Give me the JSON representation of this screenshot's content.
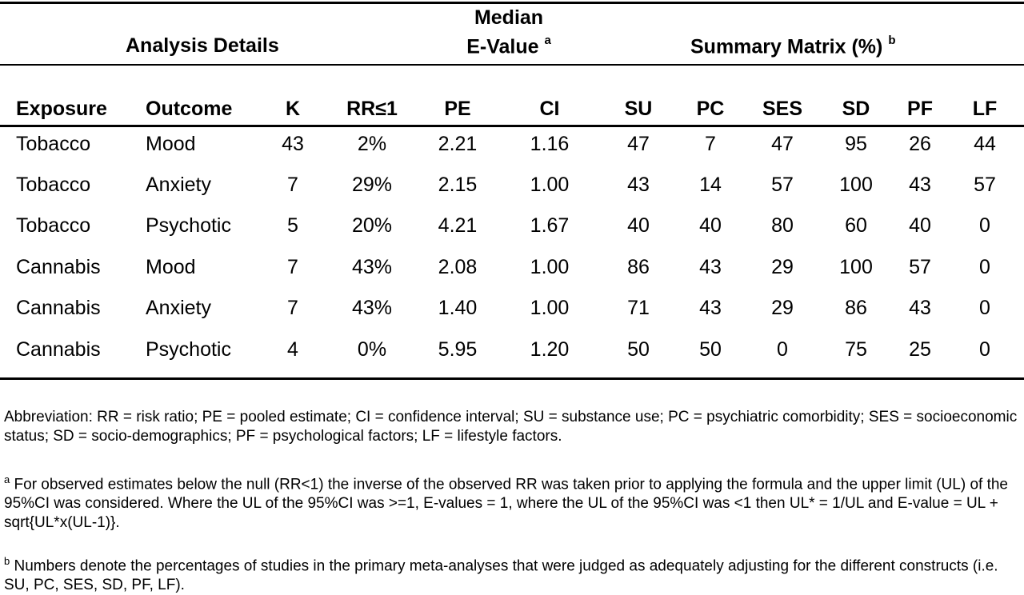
{
  "groups": {
    "analysis": "Analysis Details",
    "median_line1": "Median",
    "median_line2": "E-Value",
    "median_sup": "a",
    "summary": "Summary Matrix (%)",
    "summary_sup": "b"
  },
  "columns": [
    "Exposure",
    "Outcome",
    "K",
    "RR≤1",
    "PE",
    "CI",
    "SU",
    "PC",
    "SES",
    "SD",
    "PF",
    "LF"
  ],
  "rows": [
    [
      "Tobacco",
      "Mood",
      "43",
      "2%",
      "2.21",
      "1.16",
      "47",
      "7",
      "47",
      "95",
      "26",
      "44"
    ],
    [
      "Tobacco",
      "Anxiety",
      "7",
      "29%",
      "2.15",
      "1.00",
      "43",
      "14",
      "57",
      "100",
      "43",
      "57"
    ],
    [
      "Tobacco",
      "Psychotic",
      "5",
      "20%",
      "4.21",
      "1.67",
      "40",
      "40",
      "80",
      "60",
      "40",
      "0"
    ],
    [
      "Cannabis",
      "Mood",
      "7",
      "43%",
      "2.08",
      "1.00",
      "86",
      "43",
      "29",
      "100",
      "57",
      "0"
    ],
    [
      "Cannabis",
      "Anxiety",
      "7",
      "43%",
      "1.40",
      "1.00",
      "71",
      "43",
      "29",
      "86",
      "43",
      "0"
    ],
    [
      "Cannabis",
      "Psychotic",
      "4",
      "0%",
      "5.95",
      "1.20",
      "50",
      "50",
      "0",
      "75",
      "25",
      "0"
    ]
  ],
  "notes": {
    "abbreviation": "Abbreviation: RR = risk ratio; PE = pooled estimate; CI = confidence interval; SU = substance use; PC = psychiatric comorbidity; SES = socioeconomic status; SD = socio-demographics; PF = psychological factors; LF = lifestyle factors.",
    "a_marker": "a",
    "a_text": "For observed estimates below the null (RR<1) the inverse of the observed RR was taken prior to applying the formula and the upper limit (UL) of the 95%CI was considered. Where the UL of the 95%CI was >=1, E-values = 1, where the UL of the 95%CI was <1 then UL* = 1/UL and E-value = UL + sqrt{UL*x(UL-1)}.",
    "b_marker": "b",
    "b_text": "Numbers denote the percentages of studies in the primary meta-analyses that were judged as adequately adjusting for the different constructs (i.e. SU, PC, SES, SD, PF, LF)."
  }
}
